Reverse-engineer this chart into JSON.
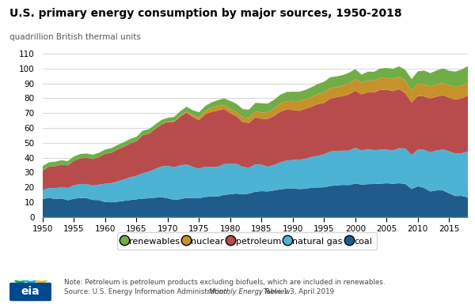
{
  "title": "U.S. primary energy consumption by major sources, 1950-2018",
  "ylabel": "quadrillion British thermal units",
  "note": "Note: Petroleum is petroleum products excluding biofuels, which are included in renewables.",
  "source_prefix": "Source: U.S. Energy Information Administration, ",
  "source_italic": "Monthly Energy Review",
  "source_suffix": "; Table 1.3, April 2019",
  "years": [
    1950,
    1951,
    1952,
    1953,
    1954,
    1955,
    1956,
    1957,
    1958,
    1959,
    1960,
    1961,
    1962,
    1963,
    1964,
    1965,
    1966,
    1967,
    1968,
    1969,
    1970,
    1971,
    1972,
    1973,
    1974,
    1975,
    1976,
    1977,
    1978,
    1979,
    1980,
    1981,
    1982,
    1983,
    1984,
    1985,
    1986,
    1987,
    1988,
    1989,
    1990,
    1991,
    1992,
    1993,
    1994,
    1995,
    1996,
    1997,
    1998,
    1999,
    2000,
    2001,
    2002,
    2003,
    2004,
    2005,
    2006,
    2007,
    2008,
    2009,
    2010,
    2011,
    2012,
    2013,
    2014,
    2015,
    2016,
    2017,
    2018
  ],
  "coal": [
    12.3,
    12.9,
    12.3,
    12.5,
    11.4,
    12.4,
    12.9,
    12.8,
    11.6,
    11.5,
    10.1,
    10.0,
    10.4,
    11.0,
    11.5,
    12.0,
    12.5,
    12.7,
    13.1,
    13.4,
    12.7,
    11.6,
    12.1,
    13.0,
    12.7,
    12.7,
    13.6,
    13.9,
    13.8,
    15.0,
    15.4,
    15.9,
    15.3,
    15.9,
    17.1,
    17.5,
    17.3,
    18.0,
    18.8,
    19.1,
    19.2,
    18.9,
    19.1,
    19.8,
    19.9,
    20.1,
    21.0,
    21.4,
    21.7,
    21.6,
    22.6,
    21.9,
    22.2,
    22.3,
    22.5,
    22.8,
    22.5,
    22.8,
    22.4,
    18.9,
    20.8,
    19.7,
    17.3,
    18.0,
    18.0,
    16.0,
    14.2,
    14.3,
    13.2
  ],
  "natural_gas": [
    5.9,
    6.7,
    7.2,
    7.8,
    8.3,
    9.0,
    9.4,
    9.5,
    9.7,
    10.4,
    12.4,
    12.9,
    13.7,
    14.4,
    15.3,
    15.8,
    17.2,
    17.9,
    19.3,
    20.7,
    21.8,
    22.0,
    22.7,
    22.5,
    21.2,
    19.9,
    20.4,
    19.9,
    20.0,
    20.7,
    20.4,
    19.9,
    18.5,
    17.4,
    18.5,
    17.8,
    16.6,
    17.2,
    18.0,
    19.0,
    19.3,
    19.6,
    20.2,
    20.7,
    21.3,
    22.2,
    23.1,
    23.2,
    23.0,
    23.2,
    24.0,
    22.9,
    23.6,
    22.7,
    22.9,
    22.6,
    22.3,
    23.6,
    23.8,
    22.9,
    24.7,
    25.6,
    26.4,
    26.8,
    27.5,
    28.3,
    28.5,
    28.7,
    31.0
  ],
  "petroleum": [
    13.3,
    14.3,
    14.8,
    15.1,
    15.1,
    16.5,
    17.3,
    17.6,
    17.8,
    18.6,
    20.1,
    20.5,
    21.5,
    22.1,
    22.8,
    23.3,
    25.5,
    25.6,
    27.0,
    28.3,
    29.5,
    30.6,
    32.9,
    34.8,
    33.5,
    32.7,
    35.2,
    37.1,
    37.9,
    37.1,
    34.2,
    31.9,
    30.2,
    30.1,
    31.5,
    30.9,
    32.2,
    32.9,
    34.2,
    34.2,
    33.6,
    33.0,
    33.6,
    33.8,
    34.9,
    34.5,
    35.7,
    36.2,
    36.8,
    37.8,
    38.4,
    37.8,
    38.2,
    38.8,
    40.3,
    40.4,
    40.0,
    39.8,
    37.2,
    35.3,
    36.0,
    35.9,
    36.2,
    36.3,
    36.5,
    36.2,
    36.4,
    37.0,
    37.5
  ],
  "nuclear": [
    0.0,
    0.0,
    0.0,
    0.0,
    0.0,
    0.0,
    0.0,
    0.0,
    0.0,
    0.0,
    0.0,
    0.1,
    0.1,
    0.1,
    0.1,
    0.1,
    0.1,
    0.1,
    0.1,
    0.1,
    0.2,
    0.4,
    0.6,
    0.9,
    1.2,
    1.9,
    2.1,
    2.7,
    3.0,
    2.8,
    2.7,
    3.1,
    3.1,
    3.2,
    4.1,
    4.2,
    4.5,
    4.9,
    5.5,
    5.7,
    6.1,
    6.5,
    6.5,
    6.5,
    6.8,
    7.1,
    7.1,
    6.6,
    7.0,
    7.3,
    7.9,
    8.0,
    8.1,
    7.9,
    8.2,
    8.2,
    8.2,
    8.4,
    8.4,
    8.1,
    8.4,
    8.3,
    8.0,
    8.3,
    8.3,
    8.3,
    8.4,
    8.4,
    8.3
  ],
  "renewables": [
    2.9,
    3.0,
    3.0,
    2.9,
    2.9,
    2.9,
    2.9,
    2.9,
    2.9,
    2.8,
    2.9,
    2.9,
    2.9,
    2.9,
    2.9,
    2.9,
    2.9,
    2.9,
    2.9,
    2.9,
    2.6,
    2.8,
    2.9,
    3.1,
    3.3,
    3.4,
    3.5,
    3.6,
    4.0,
    4.3,
    5.5,
    5.4,
    5.6,
    5.7,
    5.7,
    6.2,
    5.8,
    6.0,
    5.8,
    6.2,
    6.2,
    6.3,
    6.2,
    6.6,
    6.7,
    7.2,
    7.2,
    7.3,
    7.1,
    7.3,
    6.7,
    5.3,
    5.8,
    6.1,
    6.1,
    6.4,
    6.8,
    6.8,
    7.3,
    7.7,
    8.2,
    9.1,
    9.0,
    9.3,
    9.8,
    9.7,
    10.4,
    11.0,
    11.5
  ],
  "colors": {
    "coal": "#1f5c8b",
    "natural_gas": "#4db3d4",
    "petroleum": "#b84c4c",
    "nuclear": "#c8922a",
    "renewables": "#70ad47"
  },
  "ylim": [
    0,
    115
  ],
  "yticks": [
    0,
    10,
    20,
    30,
    40,
    50,
    60,
    70,
    80,
    90,
    100,
    110
  ],
  "xlim": [
    1950,
    2018
  ],
  "xticks": [
    1950,
    1955,
    1960,
    1965,
    1970,
    1975,
    1980,
    1985,
    1990,
    1995,
    2000,
    2005,
    2010,
    2015
  ]
}
